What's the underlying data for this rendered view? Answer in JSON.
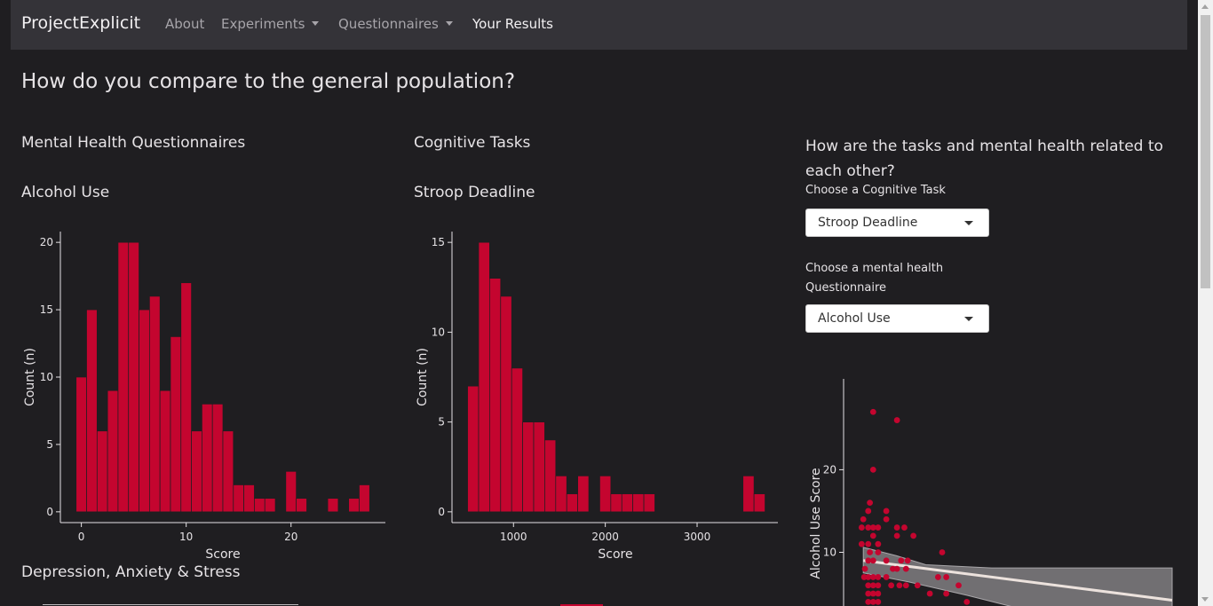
{
  "navbar": {
    "brand": "ProjectExplicit",
    "items": [
      {
        "label": "About"
      },
      {
        "label": "Experiments"
      },
      {
        "label": "Questionnaires"
      },
      {
        "label": "Your Results"
      }
    ]
  },
  "page": {
    "title": "How do you compare to the general population?",
    "col1_heading": "Mental Health Questionnaires",
    "col2_heading": "Cognitive Tasks",
    "col3_heading": "How are the tasks and mental health related to each other?",
    "section_bottom": "Depression, Anxiety & Stress"
  },
  "controls": {
    "task_label": "Choose a Cognitive Task",
    "task_value": "Stroop Deadline",
    "questionnaire_label": "Choose a mental health Questionnaire",
    "questionnaire_value": "Alcohol Use"
  },
  "colors": {
    "accent": "#c4052f",
    "background": "#1f1e21",
    "navbar": "#343338",
    "band": "#7a787b"
  },
  "chart_data": [
    {
      "type": "bar",
      "title": "Alcohol Use",
      "xlabel": "Score",
      "ylabel": "Count (n)",
      "bins_start": [
        -0.5,
        0.5,
        1.5,
        2.5,
        3.5,
        4.5,
        5.5,
        6.5,
        7.5,
        8.5,
        9.5,
        10.5,
        11.5,
        12.5,
        13.5,
        14.5,
        15.5,
        16.5,
        17.5,
        18.5,
        19.5,
        20.5,
        21.5,
        22.5,
        23.5,
        24.5,
        25.5,
        26.5
      ],
      "bin_width": 1,
      "values": [
        10,
        15,
        6,
        9,
        20,
        20,
        15,
        16,
        9,
        13,
        17,
        6,
        8,
        8,
        6,
        2,
        2,
        1,
        1,
        0,
        3,
        1,
        0,
        0,
        1,
        0,
        1,
        2
      ],
      "xlim": [
        -2,
        29
      ],
      "ylim": [
        -0.8,
        20.8
      ],
      "xticks": [
        0,
        10,
        20
      ],
      "yticks": [
        0,
        5,
        10,
        15,
        20
      ]
    },
    {
      "type": "bar",
      "title": "Stroop Deadline",
      "xlabel": "Score",
      "ylabel": "Count (n)",
      "bins_start": [
        500,
        620,
        740,
        860,
        980,
        1100,
        1220,
        1340,
        1460,
        1580,
        1700,
        1820,
        1940,
        2060,
        2180,
        2300,
        2420,
        2540,
        2660,
        2780,
        2900,
        3020,
        3140,
        3260,
        3380,
        3500,
        3620
      ],
      "bin_width": 120,
      "values": [
        7,
        15,
        13,
        12,
        8,
        5,
        5,
        4,
        2,
        1,
        2,
        0,
        2,
        1,
        1,
        1,
        1,
        0,
        0,
        0,
        0,
        0,
        0,
        0,
        0,
        2,
        1
      ],
      "xlim": [
        330,
        3880
      ],
      "ylim": [
        -0.6,
        15.6
      ],
      "xticks": [
        1000,
        2000,
        3000
      ],
      "yticks": [
        0,
        5,
        10,
        15
      ]
    },
    {
      "type": "scatter",
      "xlabel": "",
      "ylabel": "Alcohol Use Score",
      "yticks": [
        10,
        20
      ],
      "xlim": [
        0,
        4000
      ],
      "ylim": [
        3.5,
        31
      ],
      "points": [
        [
          220,
          11
        ],
        [
          240,
          14
        ],
        [
          220,
          13
        ],
        [
          250,
          7
        ],
        [
          300,
          15
        ],
        [
          320,
          16
        ],
        [
          300,
          13
        ],
        [
          360,
          12
        ],
        [
          360,
          27
        ],
        [
          360,
          20
        ],
        [
          360,
          13
        ],
        [
          420,
          13
        ],
        [
          520,
          15
        ],
        [
          520,
          14
        ],
        [
          650,
          13
        ],
        [
          650,
          12
        ],
        [
          650,
          26
        ],
        [
          740,
          13
        ],
        [
          850,
          12
        ],
        [
          780,
          9
        ],
        [
          300,
          11
        ],
        [
          420,
          11
        ],
        [
          320,
          10
        ],
        [
          300,
          9
        ],
        [
          360,
          9
        ],
        [
          420,
          10
        ],
        [
          520,
          9
        ],
        [
          600,
          8
        ],
        [
          650,
          8
        ],
        [
          700,
          9
        ],
        [
          760,
          8
        ],
        [
          260,
          8
        ],
        [
          300,
          7
        ],
        [
          360,
          7
        ],
        [
          420,
          7
        ],
        [
          520,
          7
        ],
        [
          580,
          6
        ],
        [
          680,
          6
        ],
        [
          760,
          6
        ],
        [
          900,
          6
        ],
        [
          1050,
          5
        ],
        [
          1150,
          7
        ],
        [
          1250,
          7
        ],
        [
          1400,
          6
        ],
        [
          1250,
          5
        ],
        [
          1500,
          4
        ],
        [
          300,
          6
        ],
        [
          360,
          6
        ],
        [
          420,
          6
        ],
        [
          300,
          5
        ],
        [
          360,
          5
        ],
        [
          420,
          5
        ],
        [
          300,
          4
        ],
        [
          360,
          4
        ],
        [
          420,
          4
        ],
        [
          1200,
          10
        ]
      ],
      "trend": {
        "x": [
          240,
          4000
        ],
        "y": [
          9,
          4.2
        ]
      },
      "band_upper": [
        [
          240,
          10.6
        ],
        [
          640,
          9.6
        ],
        [
          1000,
          8.5
        ],
        [
          1800,
          8.1
        ],
        [
          4000,
          8.1
        ]
      ],
      "band_lower": [
        [
          4000,
          0.4
        ],
        [
          2500,
          2.3
        ],
        [
          1500,
          4.8
        ],
        [
          800,
          6.4
        ],
        [
          240,
          7.5
        ]
      ]
    }
  ]
}
